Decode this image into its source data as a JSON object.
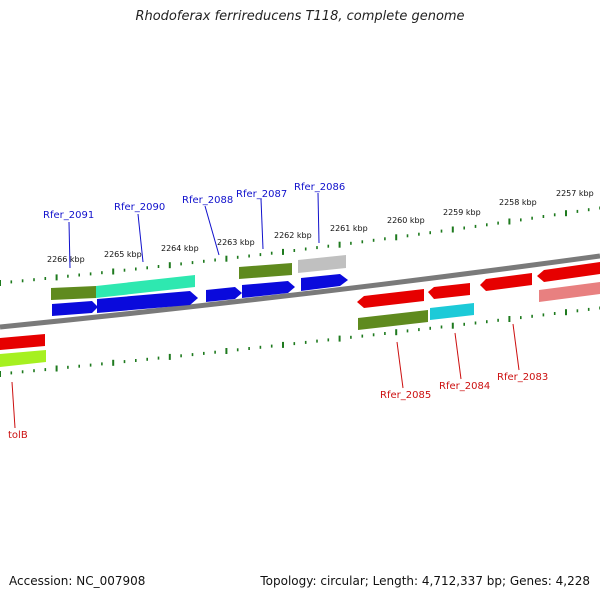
{
  "title": "Rhodoferax ferrireducens T118, complete genome",
  "footer": {
    "accession": "Accession: NC_007908",
    "summary": "Topology: circular; Length: 4,712,337 bp; Genes: 4,228"
  },
  "scale_labels": [
    "2266 kbp",
    "2265 kbp",
    "2264 kbp",
    "2263 kbp",
    "2262 kbp",
    "2261 kbp",
    "2260 kbp",
    "2259 kbp",
    "2258 kbp",
    "2257 kbp"
  ],
  "genes_top": [
    "Rfer_2091",
    "Rfer_2090",
    "Rfer_2088",
    "Rfer_2087",
    "Rfer_2086"
  ],
  "genes_bottom": [
    "Rfer_2085",
    "Rfer_2084",
    "Rfer_2083",
    "tolB"
  ],
  "colors": {
    "forward": "#0a0adc",
    "reverse": "#e60000",
    "olive": "#5f8a1e",
    "teal": "#2ee8b0",
    "grey": "#c0c0c0",
    "cyan": "#1ccad8",
    "pink": "#e88080",
    "lime": "#a6f020",
    "tick": "#1e7a1e"
  }
}
